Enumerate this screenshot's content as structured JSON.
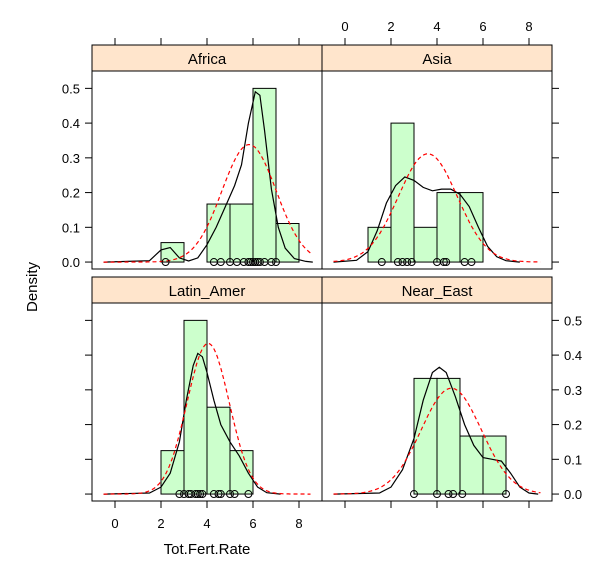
{
  "chart_data": {
    "type": "histogram-density-lattice",
    "xlabel": "Tot.Fert.Rate",
    "ylabel": "Density",
    "xlim": [
      -1,
      9
    ],
    "ylim": [
      -0.02,
      0.55
    ],
    "x_ticks": [
      0,
      2,
      4,
      6,
      8
    ],
    "y_ticks": [
      0.0,
      0.1,
      0.2,
      0.3,
      0.4,
      0.5
    ],
    "colors": {
      "strip": "#ffe5cc",
      "bar_fill": "#ccffcc",
      "kde": "#000000",
      "normal": "#ff0000"
    },
    "panels": [
      {
        "name": "Africa",
        "bin_width": 1,
        "bins": [
          {
            "x0": 2,
            "density": 0.056
          },
          {
            "x0": 3,
            "density": 0
          },
          {
            "x0": 4,
            "density": 0.167
          },
          {
            "x0": 5,
            "density": 0.167
          },
          {
            "x0": 6,
            "density": 0.5
          },
          {
            "x0": 7,
            "density": 0.111
          }
        ],
        "normal": {
          "mean": 5.83,
          "sd": 1.18
        },
        "kde_curve": [
          [
            -0.5,
            0
          ],
          [
            1.5,
            0.004
          ],
          [
            2.0,
            0.035
          ],
          [
            2.4,
            0.042
          ],
          [
            2.8,
            0.012
          ],
          [
            3.2,
            0.003
          ],
          [
            3.6,
            0.012
          ],
          [
            4.0,
            0.05
          ],
          [
            4.4,
            0.1
          ],
          [
            4.8,
            0.16
          ],
          [
            5.2,
            0.22
          ],
          [
            5.5,
            0.28
          ],
          [
            5.8,
            0.4
          ],
          [
            6.1,
            0.49
          ],
          [
            6.3,
            0.48
          ],
          [
            6.5,
            0.38
          ],
          [
            6.8,
            0.21
          ],
          [
            7.1,
            0.1
          ],
          [
            7.4,
            0.04
          ],
          [
            7.8,
            0.01
          ],
          [
            8.3,
            0.002
          ],
          [
            8.6,
            0
          ]
        ],
        "points": [
          2.2,
          4.3,
          4.6,
          5.0,
          5.3,
          5.6,
          5.8,
          5.9,
          6.0,
          6.1,
          6.2,
          6.3,
          6.5,
          6.8,
          7.0
        ]
      },
      {
        "name": "Asia",
        "bin_width": 1,
        "bins": [
          {
            "x0": 1,
            "density": 0.1
          },
          {
            "x0": 2,
            "density": 0.4
          },
          {
            "x0": 3,
            "density": 0.1
          },
          {
            "x0": 4,
            "density": 0.2
          },
          {
            "x0": 5,
            "density": 0.2
          }
        ],
        "normal": {
          "mean": 3.6,
          "sd": 1.28
        },
        "kde_curve": [
          [
            -0.5,
            0
          ],
          [
            0.5,
            0.005
          ],
          [
            1.0,
            0.03
          ],
          [
            1.4,
            0.09
          ],
          [
            1.8,
            0.17
          ],
          [
            2.2,
            0.22
          ],
          [
            2.6,
            0.245
          ],
          [
            3.0,
            0.235
          ],
          [
            3.4,
            0.215
          ],
          [
            3.8,
            0.205
          ],
          [
            4.2,
            0.21
          ],
          [
            4.6,
            0.21
          ],
          [
            5.0,
            0.195
          ],
          [
            5.4,
            0.16
          ],
          [
            5.8,
            0.1
          ],
          [
            6.2,
            0.045
          ],
          [
            6.6,
            0.015
          ],
          [
            7.0,
            0.004
          ],
          [
            7.6,
            0
          ]
        ],
        "points": [
          1.6,
          2.3,
          2.5,
          2.7,
          2.9,
          4.0,
          4.3,
          4.4,
          5.2,
          5.5
        ]
      },
      {
        "name": "Latin_Amer",
        "bin_width": 1,
        "bins": [
          {
            "x0": 2,
            "density": 0.125
          },
          {
            "x0": 3,
            "density": 0.5
          },
          {
            "x0": 4,
            "density": 0.25
          },
          {
            "x0": 5,
            "density": 0.125
          }
        ],
        "normal": {
          "mean": 4.05,
          "sd": 0.92
        },
        "kde_curve": [
          [
            -0.5,
            0
          ],
          [
            1.5,
            0.003
          ],
          [
            2.0,
            0.02
          ],
          [
            2.4,
            0.06
          ],
          [
            2.8,
            0.15
          ],
          [
            3.1,
            0.27
          ],
          [
            3.4,
            0.37
          ],
          [
            3.6,
            0.405
          ],
          [
            3.8,
            0.395
          ],
          [
            4.0,
            0.35
          ],
          [
            4.3,
            0.27
          ],
          [
            4.6,
            0.2
          ],
          [
            5.0,
            0.15
          ],
          [
            5.4,
            0.11
          ],
          [
            5.8,
            0.06
          ],
          [
            6.2,
            0.02
          ],
          [
            6.6,
            0.004
          ],
          [
            7.2,
            0
          ]
        ],
        "points": [
          2.8,
          3.0,
          3.2,
          3.3,
          3.5,
          3.6,
          3.7,
          3.8,
          4.3,
          4.5,
          4.6,
          5.0,
          5.2,
          5.8
        ]
      },
      {
        "name": "Near_East",
        "bin_width": 1,
        "bins": [
          {
            "x0": 3,
            "density": 0.333
          },
          {
            "x0": 4,
            "density": 0.333
          },
          {
            "x0": 5,
            "density": 0.167
          },
          {
            "x0": 6,
            "density": 0.167
          }
        ],
        "normal": {
          "mean": 4.62,
          "sd": 1.31
        },
        "kde_curve": [
          [
            -0.5,
            0
          ],
          [
            1.5,
            0.003
          ],
          [
            2.0,
            0.02
          ],
          [
            2.5,
            0.07
          ],
          [
            3.0,
            0.16
          ],
          [
            3.4,
            0.27
          ],
          [
            3.8,
            0.35
          ],
          [
            4.1,
            0.365
          ],
          [
            4.4,
            0.35
          ],
          [
            4.8,
            0.28
          ],
          [
            5.2,
            0.2
          ],
          [
            5.6,
            0.14
          ],
          [
            6.0,
            0.105
          ],
          [
            6.4,
            0.1
          ],
          [
            6.8,
            0.095
          ],
          [
            7.2,
            0.06
          ],
          [
            7.6,
            0.02
          ],
          [
            8.0,
            0.003
          ],
          [
            8.4,
            0
          ]
        ],
        "points": [
          3.0,
          4.0,
          4.5,
          4.7,
          5.1,
          7.0
        ]
      }
    ]
  }
}
